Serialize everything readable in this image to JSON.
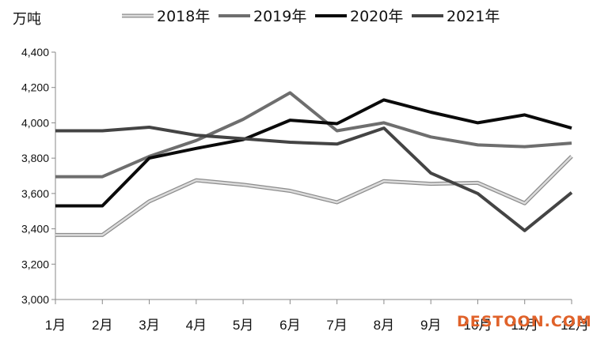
{
  "chart_data": {
    "type": "line",
    "title": "",
    "unit_label": "万吨",
    "xlabel": "",
    "ylabel": "",
    "categories": [
      "1月",
      "2月",
      "3月",
      "4月",
      "5月",
      "6月",
      "7月",
      "8月",
      "9月",
      "10月",
      "11月",
      "12月"
    ],
    "ylim": [
      3000,
      4400
    ],
    "yticks": [
      3000,
      3200,
      3400,
      3600,
      3800,
      4000,
      4200,
      4400
    ],
    "ytick_labels": [
      "3,000",
      "3,200",
      "3,400",
      "3,600",
      "3,800",
      "4,000",
      "4,200",
      "4,400"
    ],
    "grid": false,
    "legend_position": "top",
    "series": [
      {
        "name": "2018年",
        "color": "#b8b8b8",
        "style": "outlined",
        "values": [
          3365,
          3365,
          3555,
          3675,
          3650,
          3615,
          3550,
          3670,
          3655,
          3660,
          3545,
          3810
        ]
      },
      {
        "name": "2019年",
        "color": "#6e6e6e",
        "style": "solid",
        "values": [
          3695,
          3695,
          3810,
          3900,
          4020,
          4170,
          3955,
          4000,
          3920,
          3875,
          3865,
          3885
        ]
      },
      {
        "name": "2020年",
        "color": "#0a0a0a",
        "style": "solid",
        "values": [
          3530,
          3530,
          3800,
          3855,
          3905,
          4015,
          3995,
          4130,
          4060,
          4000,
          4045,
          3970
        ]
      },
      {
        "name": "2021年",
        "color": "#444444",
        "style": "solid",
        "values": [
          3955,
          3955,
          3975,
          3930,
          3910,
          3890,
          3880,
          3970,
          3715,
          3600,
          3390,
          3605
        ]
      }
    ]
  },
  "watermark": "DESTOON.COM"
}
